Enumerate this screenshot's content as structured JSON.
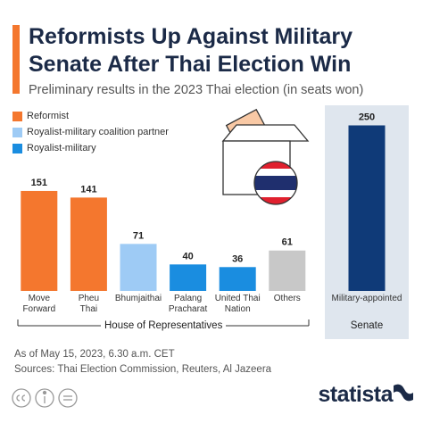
{
  "title": "Reformists Up Against Military\nSenate After Thai Election Win",
  "subtitle": "Preliminary results in the 2023 Thai election (in seats won)",
  "legend": [
    {
      "name": "Reformist",
      "color": "#f4772e"
    },
    {
      "name": "Royalist-military coalition partner",
      "color": "#9ecbf5"
    },
    {
      "name": "Royalist-military",
      "color": "#1a8de0"
    }
  ],
  "chart_data": [
    {
      "type": "bar",
      "group_label": "House of Representatives",
      "categories": [
        "Move\nForward",
        "Pheu\nThai",
        "Bhumjaithai",
        "Palang\nPracharat",
        "United Thai\nNation",
        "Others"
      ],
      "values": [
        151,
        141,
        71,
        40,
        36,
        61
      ],
      "colors": [
        "#f4772e",
        "#f4772e",
        "#9ecbf5",
        "#1a8de0",
        "#1a8de0",
        "#c8c8c8"
      ]
    },
    {
      "type": "bar",
      "group_label": "Senate",
      "categories": [
        "Military-appointed"
      ],
      "values": [
        250
      ],
      "colors": [
        "#0f3a78"
      ]
    }
  ],
  "footer": {
    "note": "As of May 15, 2023, 6.30 a.m. CET",
    "source": "Sources: Thai Election Commission, Reuters, Al Jazeera"
  },
  "brand": "statista"
}
